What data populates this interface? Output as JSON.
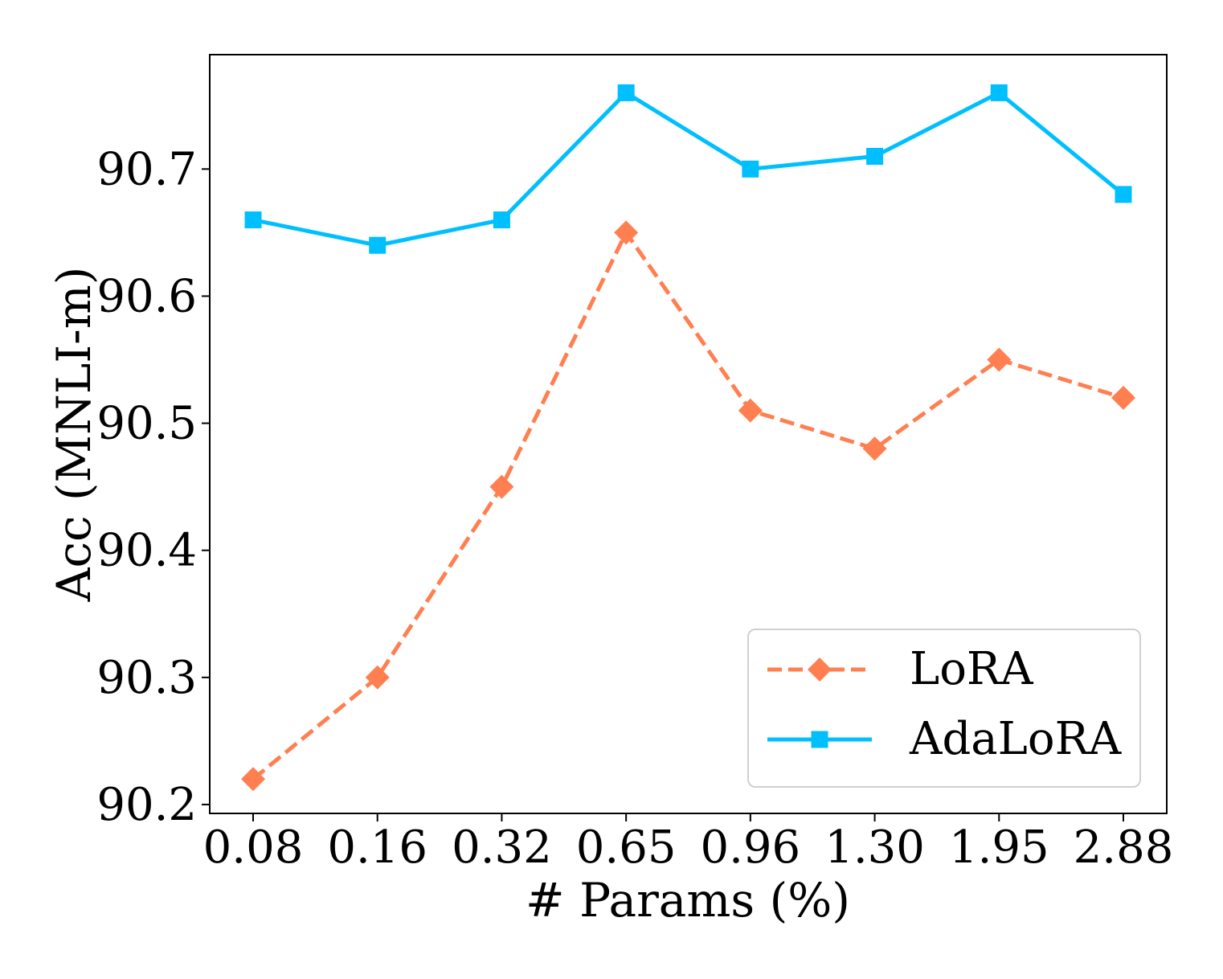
{
  "chart_data": {
    "type": "line",
    "title": "",
    "xlabel": "# Params (%)",
    "ylabel": "Acc (MNLI-m)",
    "categories": [
      "0.08",
      "0.16",
      "0.32",
      "0.65",
      "0.96",
      "1.30",
      "1.95",
      "2.88"
    ],
    "ylim": [
      90.193,
      90.79
    ],
    "yticks": [
      90.2,
      90.3,
      90.4,
      90.5,
      90.6,
      90.7
    ],
    "ytick_labels": [
      "90.2",
      "90.3",
      "90.4",
      "90.5",
      "90.6",
      "90.7"
    ],
    "grid": false,
    "legend_position": "lower-right",
    "series": [
      {
        "name": "LoRA",
        "color": "#ff7f50",
        "line_style": "dashed",
        "marker": "diamond",
        "values": [
          90.22,
          90.3,
          90.45,
          90.65,
          90.51,
          90.48,
          90.55,
          90.52
        ]
      },
      {
        "name": "AdaLoRA",
        "color": "#00bfff",
        "line_style": "solid",
        "marker": "square",
        "values": [
          90.66,
          90.64,
          90.66,
          90.76,
          90.7,
          90.71,
          90.76,
          90.68
        ]
      }
    ]
  }
}
